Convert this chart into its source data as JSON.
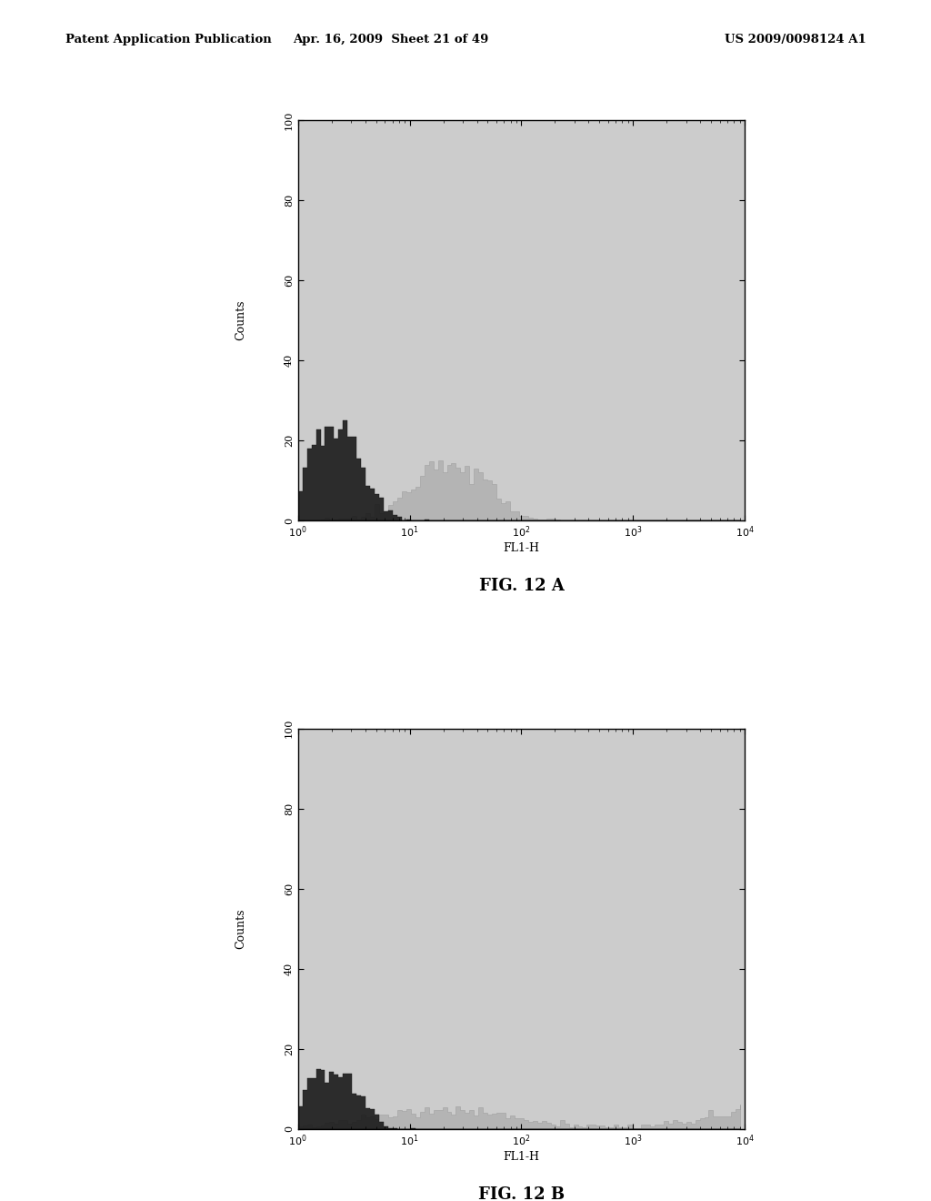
{
  "header_left": "Patent Application Publication",
  "header_center": "Apr. 16, 2009  Sheet 21 of 49",
  "header_right": "US 2009/0098124 A1",
  "fig_label_A": "FIG. 12 A",
  "fig_label_B": "FIG. 12 B",
  "xlabel": "FL1-H",
  "ylabel": "Counts",
  "yticks": [
    0,
    20,
    40,
    60,
    80,
    100
  ],
  "xlim_log": [
    1,
    10000
  ],
  "ylim": [
    0,
    100
  ],
  "background_color": "#ffffff",
  "plot_bg_color": "#cccccc",
  "dark_hist_color": "#1a1a1a",
  "light_hist_color": "#b0b0b0",
  "header_fontsize": 9.5,
  "axis_label_fontsize": 9,
  "tick_fontsize": 8,
  "fig_label_fontsize": 13
}
